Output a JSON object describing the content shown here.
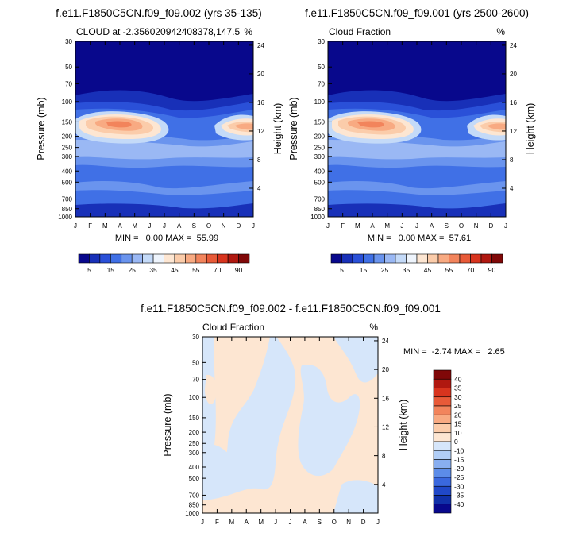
{
  "months": [
    "J",
    "F",
    "M",
    "A",
    "M",
    "J",
    "J",
    "A",
    "S",
    "O",
    "N",
    "D",
    "J"
  ],
  "pressure_ticks": [
    "30",
    "50",
    "70",
    "100",
    "150",
    "200",
    "250",
    "300",
    "400",
    "500",
    "700",
    "850",
    "1000"
  ],
  "pressure_values": [
    30,
    50,
    70,
    100,
    150,
    200,
    250,
    300,
    400,
    500,
    700,
    850,
    1000
  ],
  "height_ticks": [
    "24",
    "20",
    "16",
    "12",
    "8",
    "4"
  ],
  "height_values": [
    24,
    20,
    16,
    12,
    8,
    4
  ],
  "y_left_label": "Pressure (mb)",
  "y_right_label": "Height (km)",
  "panel1": {
    "title": "f.e11.F1850C5CN.f09_f09.002 (yrs 35-135)",
    "left_string": "CLOUD at -2.356020942408378,147.5",
    "right_string": "%",
    "stats": "MIN =   0.00 MAX =  55.99"
  },
  "panel2": {
    "title": "f.e11.F1850C5CN.f09_f09.001 (yrs 2500-2600)",
    "left_string": "Cloud Fraction",
    "right_string": "%",
    "stats": "MIN =   0.00 MAX =  57.61"
  },
  "panel3": {
    "title": "f.e11.F1850C5CN.f09_f09.002 - f.e11.F1850C5CN.f09_f09.001",
    "left_string": "Cloud Fraction",
    "right_string": "%",
    "stats": "MIN =  -2.74 MAX =   2.65"
  },
  "colorbar_abs": {
    "labels": [
      "5",
      "15",
      "25",
      "35",
      "45",
      "55",
      "70",
      "90"
    ],
    "colors": [
      "#08088c",
      "#1830b8",
      "#2a50d8",
      "#4070e6",
      "#6a94ee",
      "#9ab8f4",
      "#c4daf8",
      "#eef4fc",
      "#fde6d2",
      "#fbccaa",
      "#f8aa82",
      "#f2845c",
      "#e85a38",
      "#d8341e",
      "#b01810",
      "#800808"
    ]
  },
  "colorbar_diff": {
    "labels": [
      "40",
      "35",
      "30",
      "25",
      "20",
      "15",
      "10",
      "0",
      "-10",
      "-15",
      "-20",
      "-25",
      "-30",
      "-35",
      "-40"
    ],
    "colors": [
      "#800808",
      "#b01810",
      "#d8341e",
      "#e85a38",
      "#f2845c",
      "#f8aa82",
      "#fbccaa",
      "#fde6d2",
      "#d6e6fa",
      "#b0cdf6",
      "#88aef0",
      "#5c8ce8",
      "#3a68de",
      "#2048c8",
      "#1030a8",
      "#08088c"
    ]
  },
  "chart_data": [
    {
      "type": "heatmap",
      "title": "f.e11.F1850C5CN.f09_f09.002 (yrs 35-135)",
      "subtitle": "CLOUD at -2.356020942408378,147.5",
      "units": "%",
      "x": [
        "J",
        "F",
        "M",
        "A",
        "M",
        "J",
        "J",
        "A",
        "S",
        "O",
        "N",
        "D",
        "J"
      ],
      "y_pressure_mb": [
        30,
        50,
        70,
        100,
        150,
        200,
        250,
        300,
        400,
        500,
        700,
        850,
        1000
      ],
      "ylabel": "Pressure (mb)",
      "y2label": "Height (km)",
      "min": 0.0,
      "max": 55.99,
      "values": [
        [
          0,
          0,
          0,
          0,
          0,
          0,
          0,
          0,
          0,
          0,
          0,
          0,
          0
        ],
        [
          0,
          0,
          0,
          0,
          0,
          0,
          0,
          0,
          0,
          0,
          0,
          0,
          0
        ],
        [
          1,
          1,
          1,
          1,
          1,
          0,
          0,
          0,
          1,
          1,
          1,
          1,
          1
        ],
        [
          8,
          10,
          12,
          12,
          10,
          5,
          4,
          4,
          6,
          8,
          10,
          10,
          8
        ],
        [
          46,
          50,
          54,
          52,
          44,
          30,
          25,
          25,
          30,
          36,
          44,
          50,
          46
        ],
        [
          38,
          40,
          44,
          42,
          40,
          34,
          32,
          30,
          28,
          30,
          36,
          40,
          38
        ],
        [
          28,
          28,
          30,
          28,
          26,
          22,
          20,
          18,
          18,
          20,
          24,
          28,
          28
        ],
        [
          22,
          22,
          24,
          24,
          22,
          20,
          18,
          16,
          16,
          18,
          20,
          22,
          22
        ],
        [
          16,
          16,
          18,
          18,
          18,
          16,
          14,
          14,
          14,
          14,
          16,
          16,
          16
        ],
        [
          14,
          12,
          14,
          16,
          16,
          14,
          12,
          12,
          12,
          12,
          14,
          14,
          14
        ],
        [
          18,
          14,
          14,
          16,
          16,
          14,
          12,
          12,
          12,
          14,
          16,
          18,
          18
        ],
        [
          14,
          12,
          10,
          12,
          12,
          10,
          8,
          8,
          8,
          10,
          12,
          14,
          14
        ],
        [
          8,
          6,
          6,
          6,
          8,
          6,
          4,
          4,
          4,
          6,
          8,
          8,
          8
        ]
      ]
    },
    {
      "type": "heatmap",
      "title": "f.e11.F1850C5CN.f09_f09.001 (yrs 2500-2600)",
      "subtitle": "Cloud Fraction",
      "units": "%",
      "x": [
        "J",
        "F",
        "M",
        "A",
        "M",
        "J",
        "J",
        "A",
        "S",
        "O",
        "N",
        "D",
        "J"
      ],
      "y_pressure_mb": [
        30,
        50,
        70,
        100,
        150,
        200,
        250,
        300,
        400,
        500,
        700,
        850,
        1000
      ],
      "ylabel": "Pressure (mb)",
      "y2label": "Height (km)",
      "min": 0.0,
      "max": 57.61,
      "values": [
        [
          0,
          0,
          0,
          0,
          0,
          0,
          0,
          0,
          0,
          0,
          0,
          0,
          0
        ],
        [
          0,
          0,
          0,
          0,
          0,
          0,
          0,
          0,
          0,
          0,
          0,
          0,
          0
        ],
        [
          1,
          1,
          1,
          1,
          1,
          0,
          0,
          0,
          1,
          1,
          1,
          1,
          1
        ],
        [
          8,
          10,
          12,
          12,
          10,
          5,
          4,
          4,
          6,
          8,
          10,
          10,
          8
        ],
        [
          47,
          51,
          56,
          54,
          45,
          31,
          26,
          25,
          30,
          37,
          45,
          51,
          47
        ],
        [
          39,
          41,
          45,
          43,
          41,
          35,
          33,
          31,
          29,
          31,
          37,
          41,
          39
        ],
        [
          28,
          28,
          30,
          28,
          26,
          22,
          20,
          18,
          18,
          20,
          24,
          28,
          28
        ],
        [
          22,
          22,
          24,
          24,
          22,
          20,
          18,
          16,
          16,
          18,
          20,
          22,
          22
        ],
        [
          16,
          16,
          18,
          18,
          18,
          16,
          14,
          14,
          14,
          14,
          16,
          16,
          16
        ],
        [
          14,
          12,
          14,
          16,
          16,
          14,
          12,
          12,
          12,
          12,
          14,
          14,
          14
        ],
        [
          18,
          14,
          14,
          16,
          16,
          14,
          12,
          12,
          12,
          14,
          16,
          18,
          18
        ],
        [
          14,
          12,
          10,
          12,
          12,
          10,
          8,
          8,
          8,
          10,
          12,
          14,
          14
        ],
        [
          8,
          6,
          6,
          6,
          8,
          6,
          4,
          4,
          4,
          6,
          8,
          8,
          8
        ]
      ]
    },
    {
      "type": "heatmap",
      "title": "f.e11.F1850C5CN.f09_f09.002 - f.e11.F1850C5CN.f09_f09.001",
      "subtitle": "Cloud Fraction",
      "units": "%",
      "x": [
        "J",
        "F",
        "M",
        "A",
        "M",
        "J",
        "J",
        "A",
        "S",
        "O",
        "N",
        "D",
        "J"
      ],
      "y_pressure_mb": [
        30,
        50,
        70,
        100,
        150,
        200,
        250,
        300,
        400,
        500,
        700,
        850,
        1000
      ],
      "ylabel": "Pressure (mb)",
      "y2label": "Height (km)",
      "min": -2.74,
      "max": 2.65,
      "values": [
        [
          -1,
          1,
          1,
          1,
          -1,
          1,
          1,
          1,
          1,
          1,
          1,
          1,
          1
        ],
        [
          -1,
          1,
          1,
          1,
          -1,
          1,
          1,
          1,
          1,
          1,
          -1,
          1,
          1
        ],
        [
          -1,
          1,
          1,
          1,
          -1,
          -1,
          1,
          1,
          1,
          -1,
          -1,
          1,
          1
        ],
        [
          -1,
          -1,
          1,
          1,
          -1,
          -1,
          1,
          1,
          -1,
          -1,
          -1,
          1,
          1
        ],
        [
          -1,
          1,
          -1,
          1,
          -1,
          -1,
          1,
          1,
          1,
          -1,
          -1,
          1,
          1
        ],
        [
          -1,
          1,
          -1,
          -1,
          -1,
          -1,
          -1,
          1,
          1,
          -1,
          -1,
          -1,
          1
        ],
        [
          -1,
          -1,
          -1,
          -1,
          -1,
          -1,
          -1,
          1,
          1,
          -1,
          -1,
          -1,
          1
        ],
        [
          -1,
          -1,
          -1,
          -1,
          -1,
          -1,
          -1,
          1,
          1,
          -1,
          -1,
          -1,
          1
        ],
        [
          -1,
          -1,
          -1,
          -1,
          -1,
          -1,
          1,
          1,
          -1,
          -1,
          -1,
          -1,
          1
        ],
        [
          -1,
          -1,
          -1,
          -1,
          -1,
          -1,
          1,
          1,
          1,
          1,
          1,
          1,
          1
        ],
        [
          -1,
          -1,
          1,
          -1,
          -1,
          -1,
          1,
          1,
          1,
          -1,
          1,
          1,
          1
        ],
        [
          -1,
          -1,
          1,
          1,
          -1,
          1,
          1,
          1,
          1,
          -1,
          -1,
          -1,
          -1
        ],
        [
          -1,
          -1,
          -1,
          -1,
          -1,
          -1,
          1,
          1,
          -1,
          -1,
          -1,
          -1,
          -1
        ]
      ]
    }
  ]
}
